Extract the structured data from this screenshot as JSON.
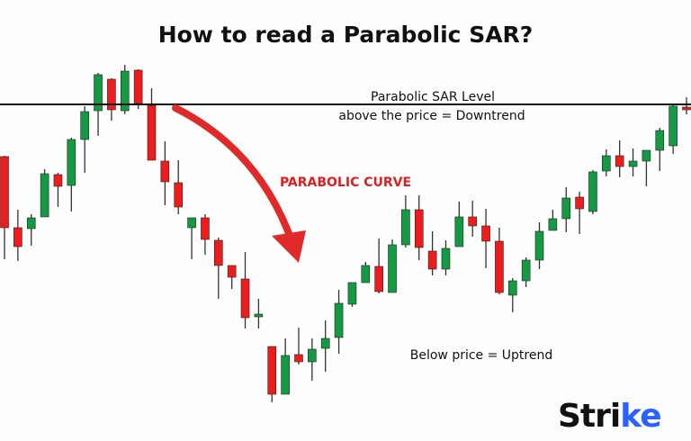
{
  "chart_data": {
    "type": "candlestick",
    "title": "How to read a Parabolic SAR?",
    "xlabel": "",
    "ylabel": "",
    "grid": false,
    "ylim": [
      40,
      440
    ],
    "ohlc_format": [
      "open",
      "high",
      "low",
      "close"
    ],
    "candles": [
      [
        326,
        327,
        212,
        247
      ],
      [
        247,
        267,
        210,
        226
      ],
      [
        246,
        262,
        227,
        258
      ],
      [
        259,
        312,
        259,
        307
      ],
      [
        306,
        308,
        270,
        293
      ],
      [
        294,
        347,
        265,
        345
      ],
      [
        345,
        382,
        308,
        376
      ],
      [
        377,
        419,
        349,
        417
      ],
      [
        412,
        413,
        366,
        378
      ],
      [
        377,
        428,
        373,
        421
      ],
      [
        422,
        423,
        379,
        385
      ],
      [
        383,
        402,
        322,
        322
      ],
      [
        321,
        343,
        272,
        298
      ],
      [
        297,
        322,
        262,
        270
      ],
      [
        247,
        258,
        212,
        258
      ],
      [
        258,
        262,
        217,
        234
      ],
      [
        233,
        236,
        168,
        205
      ],
      [
        205,
        205,
        179,
        192
      ],
      [
        190,
        220,
        135,
        147
      ],
      [
        148,
        168,
        135,
        151
      ],
      [
        115,
        115,
        53,
        62
      ],
      [
        62,
        124,
        62,
        105
      ],
      [
        106,
        136,
        95,
        98
      ],
      [
        98,
        124,
        77,
        112
      ],
      [
        113,
        144,
        87,
        124
      ],
      [
        125,
        178,
        107,
        163
      ],
      [
        162,
        186,
        159,
        186
      ],
      [
        186,
        209,
        186,
        205
      ],
      [
        204,
        235,
        174,
        176
      ],
      [
        175,
        234,
        175,
        228
      ],
      [
        228,
        283,
        225,
        267
      ],
      [
        267,
        283,
        211,
        225
      ],
      [
        221,
        243,
        194,
        201
      ],
      [
        201,
        233,
        194,
        224
      ],
      [
        226,
        276,
        226,
        259
      ],
      [
        259,
        277,
        237,
        249
      ],
      [
        249,
        268,
        202,
        232
      ],
      [
        232,
        247,
        173,
        175
      ],
      [
        172,
        191,
        153,
        188
      ],
      [
        188,
        214,
        181,
        211
      ],
      [
        211,
        253,
        201,
        243
      ],
      [
        244,
        267,
        244,
        257
      ],
      [
        257,
        292,
        242,
        280
      ],
      [
        281,
        287,
        240,
        268
      ],
      [
        265,
        311,
        262,
        309
      ],
      [
        310,
        334,
        304,
        327
      ],
      [
        327,
        344,
        303,
        315
      ],
      [
        315,
        335,
        304,
        321
      ],
      [
        321,
        333,
        293,
        333
      ],
      [
        333,
        358,
        310,
        355
      ],
      [
        338,
        383,
        329,
        382
      ],
      [
        381,
        392,
        373,
        378
      ]
    ],
    "sar_level": 384,
    "annotations": {
      "sar_line_1": "Parabolic SAR Level",
      "sar_line_2": "above the price = Downtrend",
      "curve": "PARABOLIC CURVE",
      "uptrend": "Below price = Uptrend"
    },
    "colors": {
      "up": "#139a43",
      "down": "#ee1c1c",
      "arrow": "#e02a2a",
      "line": "#111111"
    }
  },
  "logo": {
    "text_main": "Stri",
    "text_accent": "ke",
    "accent_color": "#2962ff"
  }
}
